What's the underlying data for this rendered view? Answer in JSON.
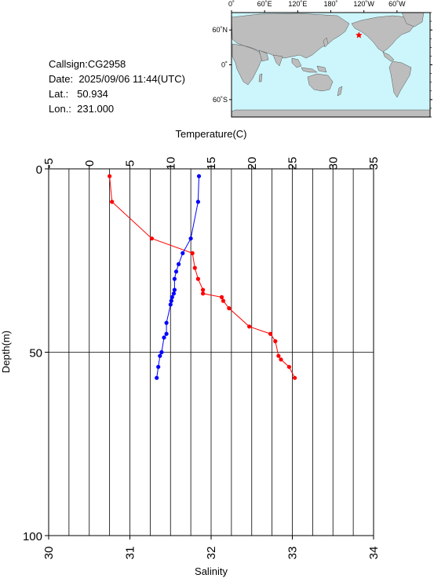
{
  "station": {
    "callsign_label": "Callsign:",
    "callsign": "CG2958",
    "date_label": "Date:",
    "date": "2025/09/06 11:44(UTC)",
    "lat_label": "Lat.:",
    "lat": "50.934",
    "lon_label": "Lon.:",
    "lon": "231.000"
  },
  "map": {
    "top_ticks": [
      "0˚",
      "60˚E",
      "120˚E",
      "180˚",
      "120˚W",
      "60˚W"
    ],
    "lat_ticks": [
      "60˚N",
      "0˚",
      "60˚S"
    ],
    "ocean_color": "#ccf6fc",
    "land_color": "#bdbdbd",
    "marker_color": "#ff0000",
    "marker": {
      "lon": 231.0,
      "lat": 50.934
    }
  },
  "chart_data": {
    "type": "line",
    "title": "",
    "x_top_label": "Temperature(C)",
    "x_bottom_label": "Salinity",
    "ylabel": "Depth(m)",
    "temperature_range": [
      -5,
      35
    ],
    "temperature_ticks": [
      "-5",
      "0",
      "5",
      "10",
      "15",
      "20",
      "25",
      "30",
      "35"
    ],
    "salinity_range": [
      30,
      34
    ],
    "salinity_ticks": [
      "30",
      "31",
      "32",
      "33",
      "34"
    ],
    "depth_range": [
      0,
      100
    ],
    "depth_ticks": [
      "0",
      "50",
      "100"
    ],
    "grid": true,
    "series": [
      {
        "key": "temperature",
        "axis": "top",
        "color": "#ff0000",
        "points": [
          [
            2.5,
            2
          ],
          [
            2.8,
            9
          ],
          [
            7.7,
            19
          ],
          [
            12.7,
            23
          ],
          [
            13.0,
            27
          ],
          [
            13.4,
            30
          ],
          [
            14.0,
            33
          ],
          [
            14.0,
            34
          ],
          [
            16.3,
            35
          ],
          [
            16.5,
            36
          ],
          [
            17.2,
            38
          ],
          [
            19.7,
            43
          ],
          [
            22.3,
            45
          ],
          [
            22.9,
            47
          ],
          [
            23.3,
            51
          ],
          [
            23.6,
            52
          ],
          [
            24.6,
            54
          ],
          [
            25.3,
            57
          ]
        ]
      },
      {
        "key": "salinity",
        "axis": "bottom",
        "color": "#0000ff",
        "points": [
          [
            31.85,
            2
          ],
          [
            31.84,
            9
          ],
          [
            31.75,
            19
          ],
          [
            31.65,
            23
          ],
          [
            31.6,
            26
          ],
          [
            31.57,
            28
          ],
          [
            31.55,
            30
          ],
          [
            31.55,
            33
          ],
          [
            31.54,
            34
          ],
          [
            31.52,
            35
          ],
          [
            31.51,
            36
          ],
          [
            31.5,
            37
          ],
          [
            31.45,
            42
          ],
          [
            31.45,
            45
          ],
          [
            31.42,
            46
          ],
          [
            31.39,
            50
          ],
          [
            31.37,
            51
          ],
          [
            31.35,
            54
          ],
          [
            31.33,
            57
          ]
        ]
      }
    ]
  }
}
